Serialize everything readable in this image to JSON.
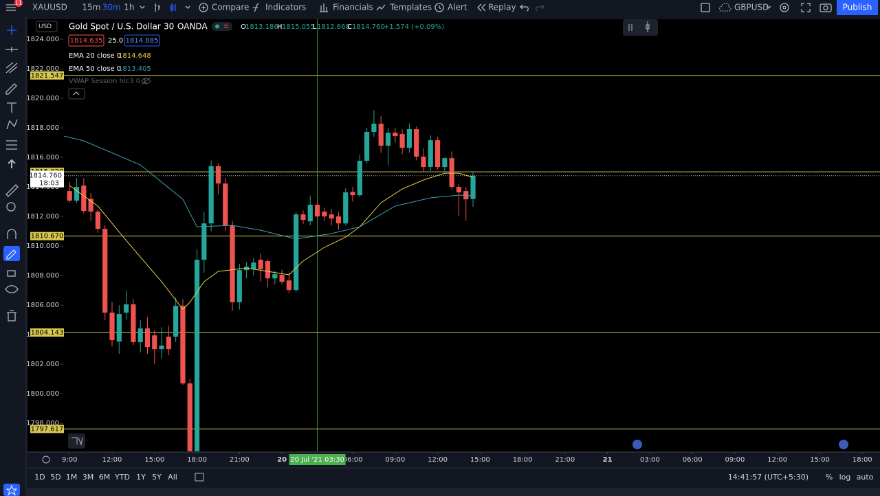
{
  "toolbar": {
    "badge": "11",
    "symbol": "XAUUSD",
    "intervals": [
      "15m",
      "30m",
      "1h"
    ],
    "buttons": [
      "Compare",
      "Indicators",
      "Financials",
      "Templates",
      "Alert",
      "Replay"
    ],
    "symbol2": "GBPUSD",
    "publish": "Publish"
  },
  "legend": {
    "currency": "USD",
    "name": "Gold Spot / U.S. Dollar",
    "interval": "30",
    "source": "OANDA",
    "ohlc": [
      {
        "key": "O",
        "value": "1813.186"
      },
      {
        "key": "H",
        "value": "1815.055"
      },
      {
        "key": "L",
        "value": "1812.660"
      },
      {
        "key": "C",
        "value": "1814.760"
      }
    ],
    "change": "+1.574 (+0.09%)",
    "bid": "1814.635",
    "spread": "25.0",
    "ask": "1814.885",
    "indicators": [
      {
        "label": "EMA 20 close 0",
        "value": "1814.648"
      },
      {
        "label": "EMA 50 close 0",
        "value": "1813.405"
      }
    ],
    "vwap": "VWAP Session hlc3 0 1"
  },
  "bottom": {
    "ranges": [
      "1D",
      "5D",
      "1M",
      "3M",
      "6M",
      "YTD",
      "1Y",
      "5Y",
      "All"
    ],
    "clock": "14:41:57 (UTC+5:30)",
    "options": [
      "%",
      "log",
      "auto"
    ]
  },
  "chart_data": {
    "type": "candlestick",
    "up_color": "#26a69a",
    "down_color": "#ef5350",
    "open": [
      1813.72,
      1813.07,
      1814.09,
      1813.2,
      1812.33,
      1811.16,
      1805.49,
      1803.53,
      1805.49,
      1806.05,
      1803.49,
      1804.42,
      1803.95,
      1803.02,
      1803.86,
      1803.86,
      1805.95,
      1800.7,
      1795.95,
      1809.07,
      1811.53,
      1815.4,
      1814.23,
      1811.4,
      1806.19,
      1808.37,
      1808.42,
      1809.07,
      1808.98,
      1807.81,
      1808.05,
      1807.67,
      1807.02,
      1812.14,
      1811.67,
      1812.79,
      1812.33,
      1812.14,
      1812.0,
      1811.53,
      1813.67,
      1813.44,
      1815.77,
      1817.72,
      1818.28,
      1816.79,
      1817.67,
      1817.58,
      1816.65,
      1817.91,
      1816.05,
      1815.35,
      1817.16,
      1815.35,
      1815.95,
      1814.0,
      1813.72,
      1813.186
    ],
    "high": [
      1814.33,
      1814.6,
      1814.6,
      1813.6,
      1812.5,
      1811.4,
      1806.2,
      1806.0,
      1807.0,
      1806.4,
      1805.0,
      1805.2,
      1804.3,
      1804.5,
      1804.6,
      1806.5,
      1806.4,
      1801.0,
      1809.8,
      1812.3,
      1815.8,
      1815.6,
      1814.6,
      1811.7,
      1808.8,
      1808.9,
      1809.2,
      1809.5,
      1809.1,
      1808.3,
      1808.4,
      1808.2,
      1812.3,
      1812.4,
      1813.4,
      1813.1,
      1812.6,
      1812.5,
      1812.3,
      1813.9,
      1814.0,
      1816.2,
      1818.0,
      1819.2,
      1818.8,
      1818.0,
      1818.0,
      1817.9,
      1818.3,
      1818.1,
      1816.6,
      1817.5,
      1817.4,
      1816.0,
      1816.4,
      1814.2,
      1814.0,
      1815.055
    ],
    "low": [
      1812.93,
      1812.9,
      1812.2,
      1811.7,
      1810.9,
      1805.0,
      1803.2,
      1802.7,
      1805.0,
      1803.3,
      1802.8,
      1802.7,
      1802.0,
      1802.4,
      1802.6,
      1803.5,
      1800.6,
      1795.9,
      1795.9,
      1808.2,
      1811.0,
      1813.5,
      1811.0,
      1805.6,
      1805.7,
      1807.8,
      1808.0,
      1807.6,
      1807.2,
      1807.4,
      1807.4,
      1806.8,
      1806.9,
      1811.5,
      1811.4,
      1811.8,
      1811.7,
      1811.4,
      1811.1,
      1811.4,
      1813.0,
      1813.3,
      1815.6,
      1817.4,
      1816.3,
      1815.5,
      1817.0,
      1816.2,
      1816.3,
      1815.8,
      1815.0,
      1815.1,
      1815.2,
      1815.0,
      1813.8,
      1812.0,
      1811.7,
      1812.66
    ],
    "close": [
      1813.07,
      1814.0,
      1812.37,
      1812.33,
      1811.16,
      1805.49,
      1803.63,
      1805.4,
      1806.05,
      1803.49,
      1804.42,
      1803.16,
      1803.02,
      1803.26,
      1803.02,
      1805.95,
      1800.7,
      1795.95,
      1809.07,
      1811.53,
      1815.4,
      1814.23,
      1811.4,
      1806.19,
      1808.37,
      1808.6,
      1808.88,
      1808.42,
      1807.81,
      1808.09,
      1807.58,
      1807.02,
      1812.14,
      1811.77,
      1812.79,
      1812.0,
      1812.0,
      1811.86,
      1811.53,
      1813.63,
      1813.44,
      1815.77,
      1817.72,
      1818.28,
      1816.79,
      1817.67,
      1817.44,
      1816.65,
      1817.91,
      1816.05,
      1815.35,
      1817.16,
      1815.35,
      1815.95,
      1814.0,
      1813.63,
      1813.16,
      1814.76
    ],
    "series": [
      {
        "name": "EMA 20 close 0",
        "color": "#e8cf4f",
        "x": [
          0,
          4,
          8,
          13,
          16,
          17,
          19,
          21,
          25,
          31,
          33,
          36,
          39,
          41,
          44,
          47,
          50,
          53,
          55,
          57
        ],
        "values": [
          1814.09,
          1812.7,
          1810.37,
          1807.58,
          1805.72,
          1806.19,
          1807.58,
          1808.28,
          1808.51,
          1808.05,
          1808.98,
          1809.91,
          1810.6,
          1811.3,
          1812.93,
          1813.86,
          1814.47,
          1814.93,
          1814.93,
          1814.648
        ]
      },
      {
        "name": "EMA 50 close 0",
        "color": "#3d9fb0",
        "x": [
          -0.8,
          2,
          10,
          16,
          18,
          23,
          27,
          32,
          37,
          41,
          46,
          51,
          55,
          57
        ],
        "values": [
          1817.44,
          1817.12,
          1815.49,
          1813.16,
          1811.3,
          1811.4,
          1811.07,
          1810.47,
          1810.84,
          1811.3,
          1812.7,
          1813.26,
          1813.44,
          1813.405
        ]
      }
    ],
    "xlim": [
      -0.8,
      114.5
    ],
    "ylim": [
      1796.1,
      1825.35
    ],
    "yticks": [
      {
        "value": 1798,
        "label": "1798.000"
      },
      {
        "value": 1800,
        "label": "1800.000"
      },
      {
        "value": 1802,
        "label": "1802.000"
      },
      {
        "value": 1804,
        "label": "1804.000"
      },
      {
        "value": 1806,
        "label": "1806.000"
      },
      {
        "value": 1808,
        "label": "1808.000"
      },
      {
        "value": 1810,
        "label": "1810.000"
      },
      {
        "value": 1812,
        "label": "1812.000"
      },
      {
        "value": 1814,
        "label": "1814.000"
      },
      {
        "value": 1816,
        "label": "1816.000"
      },
      {
        "value": 1818,
        "label": "1818.000"
      },
      {
        "value": 1820,
        "label": "1820.000"
      },
      {
        "value": 1822,
        "label": "1822.000"
      },
      {
        "value": 1824,
        "label": "1824.000"
      }
    ],
    "xticks": [
      {
        "value": 0,
        "label": "9:00"
      },
      {
        "value": 6,
        "label": "12:00"
      },
      {
        "value": 12,
        "label": "15:00"
      },
      {
        "value": 18,
        "label": "18:00"
      },
      {
        "value": 24,
        "label": "21:00"
      },
      {
        "value": 30,
        "label": "20"
      },
      {
        "value": 40,
        "label": "06:00"
      },
      {
        "value": 46,
        "label": "09:00"
      },
      {
        "value": 52,
        "label": "12:00"
      },
      {
        "value": 58,
        "label": "15:00"
      },
      {
        "value": 64,
        "label": "18:00"
      },
      {
        "value": 70,
        "label": "21:00"
      },
      {
        "value": 76,
        "label": "21"
      },
      {
        "value": 82,
        "label": "03:00"
      },
      {
        "value": 88,
        "label": "06:00"
      },
      {
        "value": 94,
        "label": "09:00"
      },
      {
        "value": 100,
        "label": "12:00"
      },
      {
        "value": 106,
        "label": "15:00"
      },
      {
        "value": 112,
        "label": "18:00"
      }
    ],
    "crosshair": {
      "value": 35,
      "label": "20 Jul '21  03:30"
    },
    "levels": [
      1821.547,
      {
        "value": 1815.02,
        "label": "1815.020"
      },
      {
        "value": 1810.67,
        "label": "1810.670"
      },
      1804.143,
      1797.617
    ],
    "level_color": "#d9c84e",
    "last_price": {
      "value": 1814.76,
      "label": "1814.760",
      "countdown": "18:03"
    }
  }
}
